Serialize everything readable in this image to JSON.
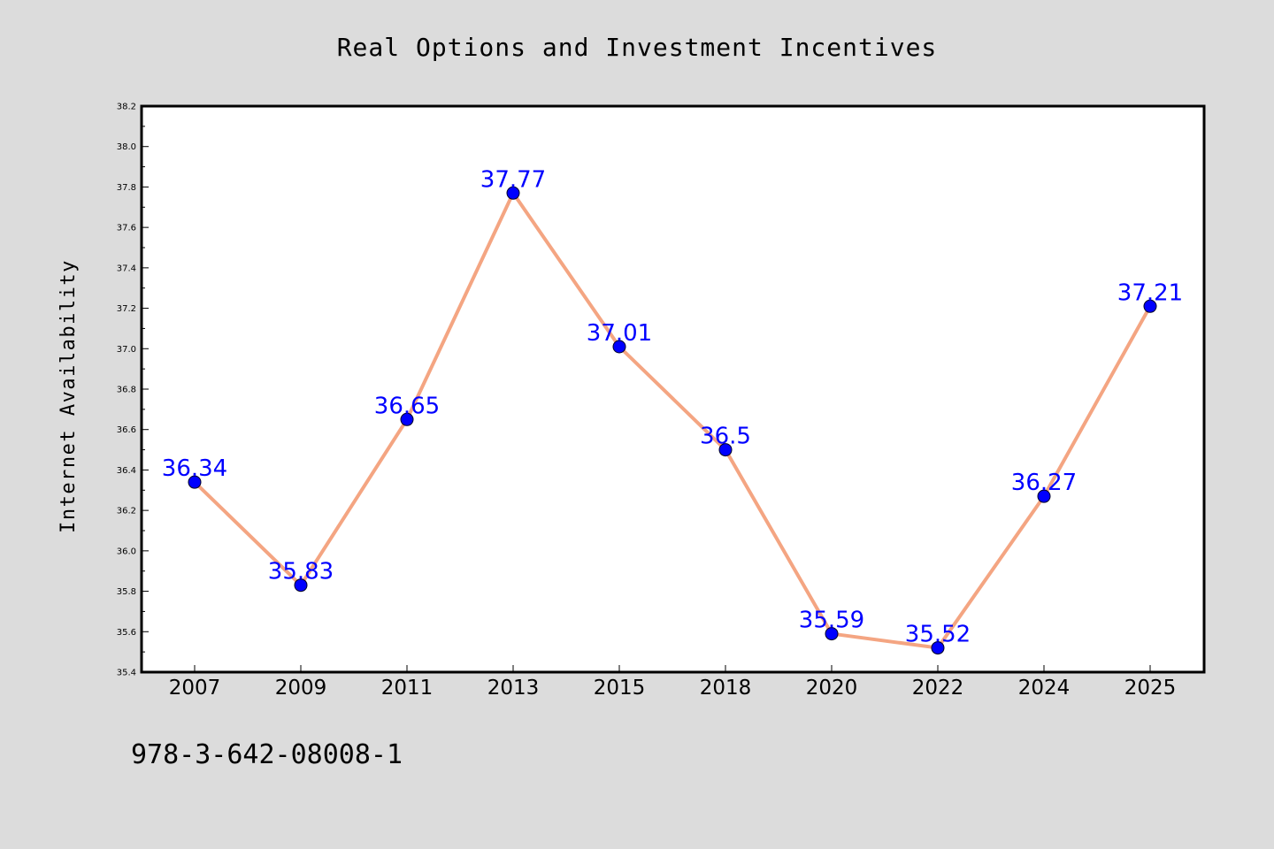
{
  "chart_data": {
    "type": "line",
    "title": "Real Options and Investment Incentives",
    "xlabel": "",
    "ylabel": "Internet Availability",
    "categories": [
      "2007",
      "2009",
      "2011",
      "2013",
      "2015",
      "2018",
      "2020",
      "2022",
      "2024",
      "2025"
    ],
    "series": [
      {
        "values": [
          36.34,
          35.83,
          36.65,
          37.77,
          37.01,
          36.5,
          35.59,
          35.52,
          36.27,
          37.21
        ],
        "line_color": "#f4a582",
        "marker_color": "#0000ff"
      }
    ],
    "data_labels": [
      "36.34",
      "35.83",
      "36.65",
      "37.77",
      "37.01",
      "36.5",
      "35.59",
      "35.52",
      "36.27",
      "37.21"
    ],
    "ylim": [
      35.4,
      38.2
    ],
    "yticks": [
      "35.4",
      "35.6",
      "35.8",
      "36.0",
      "36.2",
      "36.4",
      "36.6",
      "36.8",
      "37.0",
      "37.2",
      "37.4",
      "37.6",
      "37.8",
      "38.0",
      "38.2"
    ],
    "grid": false,
    "legend": "none"
  },
  "footnote": "978-3-642-08008-1",
  "colors": {
    "background": "#dcdcdc",
    "plot_background": "#ffffff",
    "line": "#f4a582",
    "marker": "#0000ff",
    "data_label": "#0000ff"
  }
}
